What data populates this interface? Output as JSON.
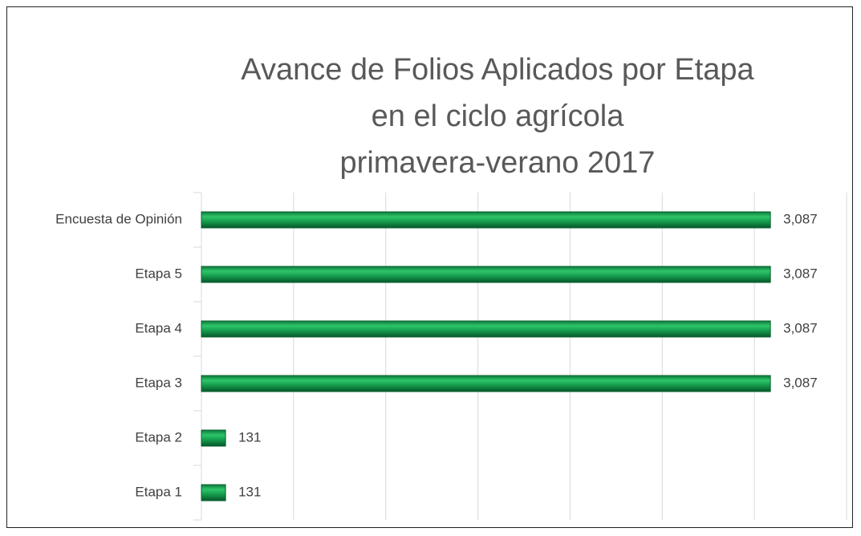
{
  "chart_data": {
    "type": "hbar",
    "title": "Avance de Folios Aplicados por Etapa\nen el ciclo agrícola\nprimavera-verano 2017",
    "categories": [
      "Encuesta de Opinión",
      "Etapa 5",
      "Etapa 4",
      "Etapa 3",
      "Etapa 2",
      "Etapa 1"
    ],
    "values": [
      3087,
      3087,
      3087,
      3087,
      131,
      131
    ],
    "value_labels": [
      "3,087",
      "3,087",
      "3,087",
      "3,087",
      "131",
      "131"
    ],
    "color": "#18a552",
    "xlim": [
      0,
      3500
    ],
    "xticks": [
      0,
      500,
      1000,
      1500,
      2000,
      2500,
      3000,
      3500
    ],
    "grid": true
  }
}
